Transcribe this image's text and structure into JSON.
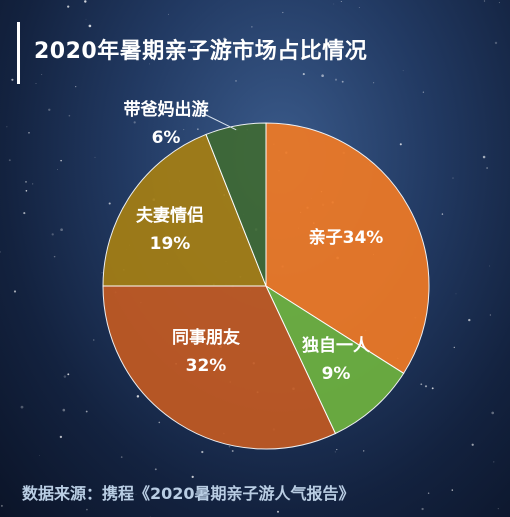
{
  "title": "2020年暑期亲子游市场占比情况",
  "source": "数据来源：携程《2020暑期亲子游人气报告》",
  "chart_data": {
    "type": "pie",
    "title": "2020年暑期亲子游市场占比情况",
    "slices": [
      {
        "label": "亲子",
        "value": 34,
        "display": "亲子34%",
        "color": "#f07a25"
      },
      {
        "label": "独自一人",
        "value": 9,
        "display": "9%",
        "color": "#6fb33f"
      },
      {
        "label": "同事朋友",
        "value": 32,
        "display": "32%",
        "color": "#c35a22"
      },
      {
        "label": "夫妻情侣",
        "value": 19,
        "display": "19%",
        "color": "#a67f13"
      },
      {
        "label": "带爸妈出游",
        "value": 6,
        "display": "6%",
        "color": "#3f6a34"
      }
    ]
  }
}
